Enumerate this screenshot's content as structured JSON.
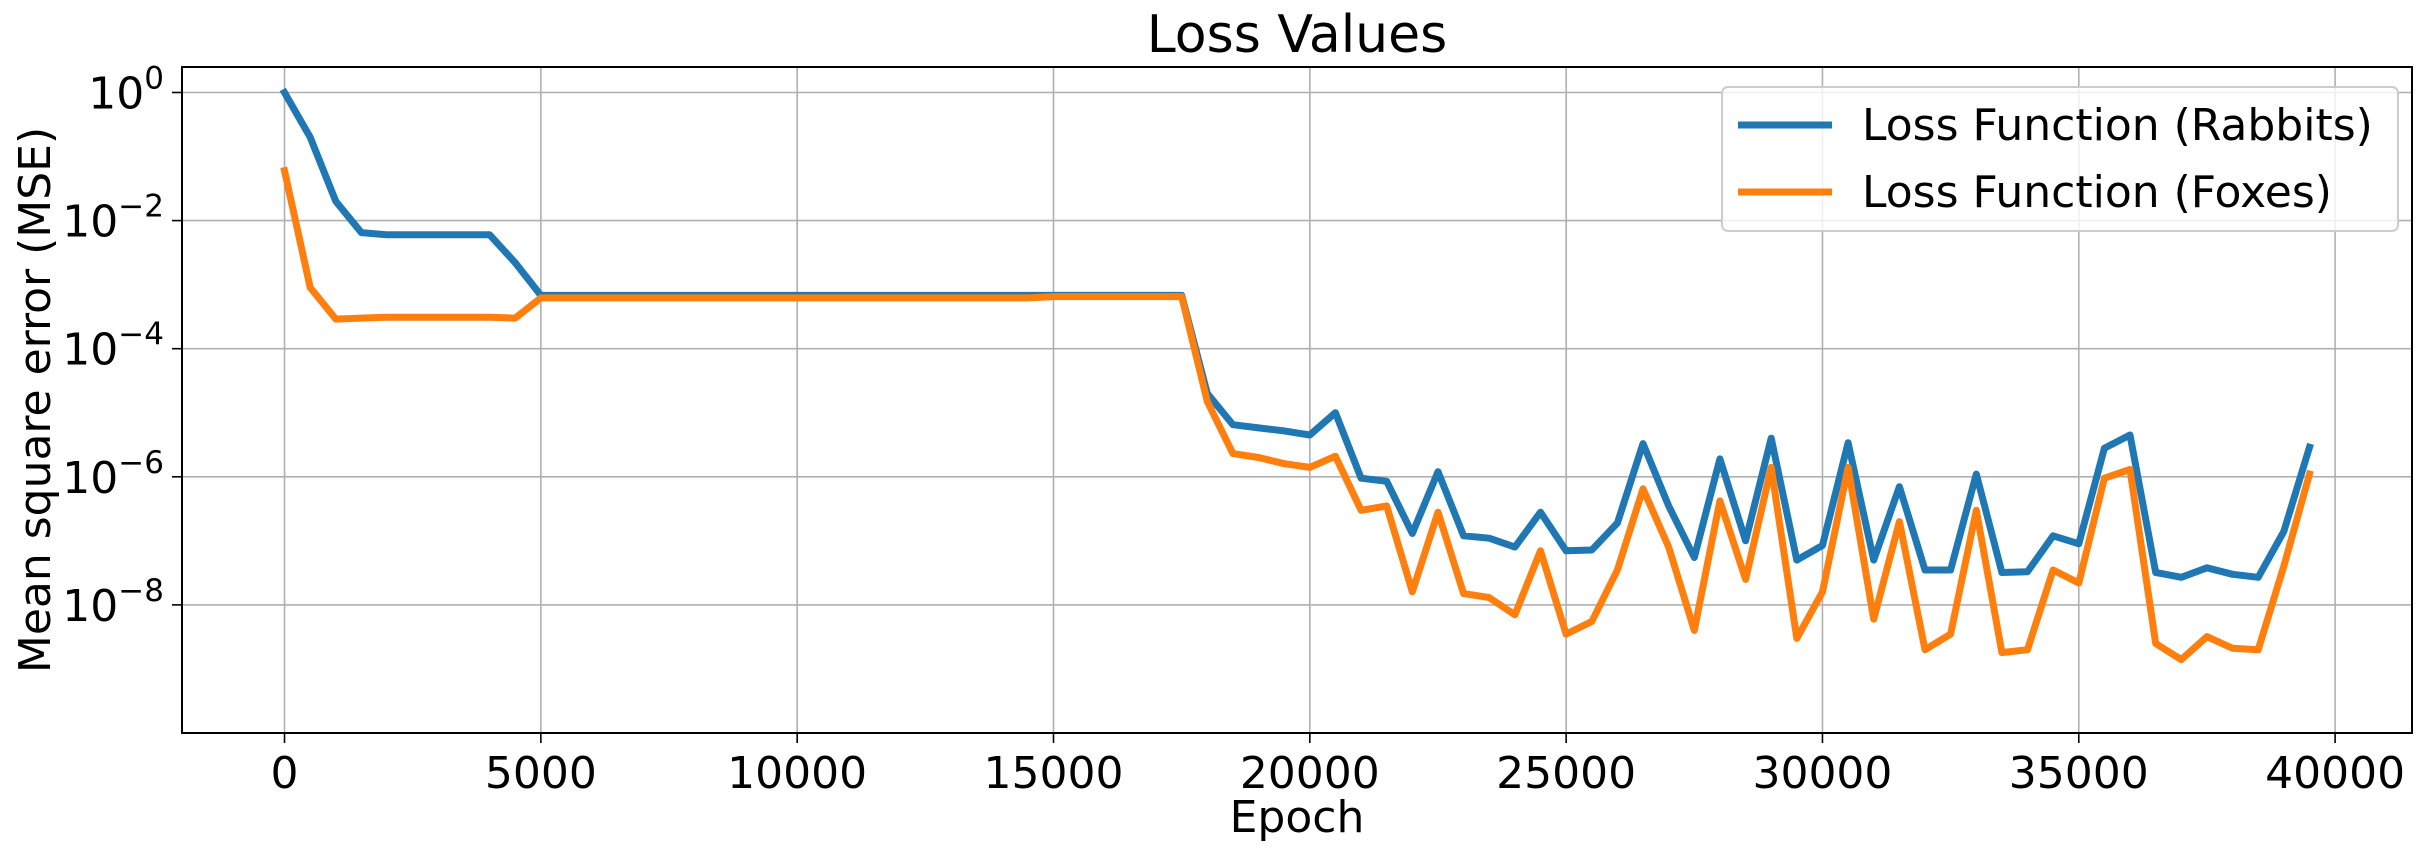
{
  "chart_data": {
    "type": "line",
    "title": "Loss Values",
    "xlabel": "Epoch",
    "ylabel": "Mean square error (MSE)",
    "xlim": [
      -2000,
      41500
    ],
    "ylim": [
      1e-10,
      2.5
    ],
    "yscale": "log",
    "grid": true,
    "legend_position": "top-right",
    "xticks": [
      0,
      5000,
      10000,
      15000,
      20000,
      25000,
      30000,
      35000,
      40000
    ],
    "xtick_labels": [
      "0",
      "5000",
      "10000",
      "15000",
      "20000",
      "25000",
      "30000",
      "35000",
      "40000"
    ],
    "yticks": [
      1,
      0.01,
      0.0001,
      1e-06,
      1e-08
    ],
    "ytick_labels": [
      {
        "base": "10",
        "exp": "0"
      },
      {
        "base": "10",
        "exp": "−2"
      },
      {
        "base": "10",
        "exp": "−4"
      },
      {
        "base": "10",
        "exp": "−6"
      },
      {
        "base": "10",
        "exp": "−8"
      }
    ],
    "x": [
      0,
      500,
      1000,
      1500,
      2000,
      2500,
      3000,
      3500,
      4000,
      4500,
      5000,
      5500,
      6000,
      6500,
      7000,
      7500,
      8000,
      8500,
      9000,
      9500,
      10000,
      10500,
      11000,
      11500,
      12000,
      12500,
      13000,
      13500,
      14000,
      14500,
      15000,
      15500,
      16000,
      16500,
      17000,
      17500,
      18000,
      18500,
      19000,
      19500,
      20000,
      20500,
      21000,
      21500,
      22000,
      22500,
      23000,
      23500,
      24000,
      24500,
      25000,
      25500,
      26000,
      26500,
      27000,
      27500,
      28000,
      28500,
      29000,
      29500,
      30000,
      30500,
      31000,
      31500,
      32000,
      32500,
      33000,
      33500,
      34000,
      34500,
      35000,
      35500,
      36000,
      36500,
      37000,
      37500,
      38000,
      38500,
      39000,
      39500
    ],
    "series": [
      {
        "name": "Loss Function (Rabbits)",
        "color": "#1f77b4",
        "values": [
          1.0,
          0.2,
          0.02,
          0.0065,
          0.006,
          0.006,
          0.006,
          0.006,
          0.006,
          0.0022,
          0.00068,
          0.00068,
          0.00068,
          0.00068,
          0.00068,
          0.00068,
          0.00068,
          0.00068,
          0.00068,
          0.00068,
          0.00068,
          0.00068,
          0.00068,
          0.00068,
          0.00068,
          0.00068,
          0.00068,
          0.00068,
          0.00068,
          0.00068,
          0.00068,
          0.00068,
          0.00068,
          0.00068,
          0.00068,
          0.00068,
          2e-05,
          6.5e-06,
          5.8e-06,
          5.2e-06,
          4.5e-06,
          1e-05,
          9.5e-07,
          8.5e-07,
          1.3e-07,
          1.2e-06,
          1.2e-07,
          1.1e-07,
          8e-08,
          2.8e-07,
          7e-08,
          7.2e-08,
          1.9e-07,
          3.3e-06,
          3.5e-07,
          5.5e-08,
          1.9e-06,
          1e-07,
          4e-06,
          5e-08,
          8.5e-08,
          3.4e-06,
          5e-08,
          7e-07,
          3.5e-08,
          3.5e-08,
          1.1e-06,
          3.2e-08,
          3.3e-08,
          1.2e-07,
          9e-08,
          2.8e-06,
          4.5e-06,
          3.2e-08,
          2.7e-08,
          3.8e-08,
          3e-08,
          2.7e-08,
          1.4e-07,
          2.9e-06
        ]
      },
      {
        "name": "Loss Function (Foxes)",
        "color": "#ff7f0e",
        "values": [
          0.06,
          0.0009,
          0.00029,
          0.0003,
          0.00031,
          0.00031,
          0.00031,
          0.00031,
          0.00031,
          0.0003,
          0.00062,
          0.00062,
          0.00062,
          0.00062,
          0.00062,
          0.00062,
          0.00062,
          0.00062,
          0.00062,
          0.00062,
          0.00062,
          0.00062,
          0.00062,
          0.00062,
          0.00062,
          0.00062,
          0.00062,
          0.00062,
          0.00062,
          0.00062,
          0.00065,
          0.00065,
          0.00065,
          0.00065,
          0.00065,
          0.00065,
          1.5e-05,
          2.3e-06,
          2e-06,
          1.6e-06,
          1.4e-06,
          2.1e-06,
          3e-07,
          3.5e-07,
          1.6e-08,
          2.8e-07,
          1.5e-08,
          1.3e-08,
          7e-09,
          7e-08,
          3.5e-09,
          5.5e-09,
          3.5e-08,
          6.5e-07,
          8e-08,
          4e-09,
          4.2e-07,
          2.5e-08,
          1.4e-06,
          3e-09,
          1.6e-08,
          1.4e-06,
          6e-09,
          2e-07,
          2e-09,
          3.5e-09,
          3e-07,
          1.8e-09,
          2e-09,
          3.5e-08,
          2.2e-08,
          9.5e-07,
          1.3e-06,
          2.5e-09,
          1.4e-09,
          3.2e-09,
          2.1e-09,
          2e-09,
          4e-08,
          1.1e-06
        ]
      }
    ]
  }
}
